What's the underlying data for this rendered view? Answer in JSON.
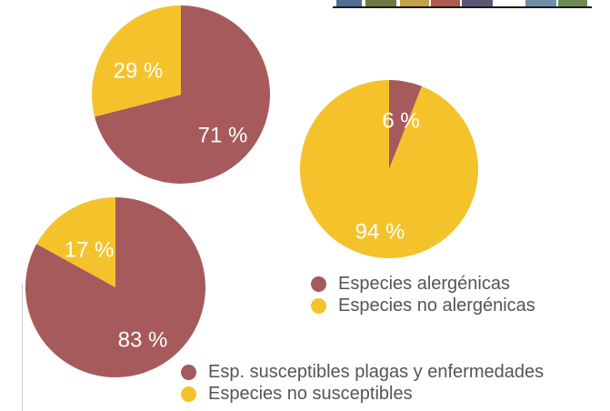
{
  "colors": {
    "red": "#a65a5c",
    "yellow": "#f4c32c",
    "text": "#555555"
  },
  "top_strip_colors": [
    "#4f6d94",
    "#6b7a3e",
    "#c6a046",
    "#b05a4c",
    "#5e5478",
    "#6f8eab",
    "#6d8a52"
  ],
  "chart_data": [
    {
      "type": "pie",
      "slices": [
        {
          "label": "71 %",
          "value": 71,
          "color": "#a65a5c"
        },
        {
          "label": "29 %",
          "value": 29,
          "color": "#f4c32c"
        }
      ]
    },
    {
      "type": "pie",
      "slices": [
        {
          "label": "6 %",
          "value": 6,
          "color": "#a65a5c"
        },
        {
          "label": "94 %",
          "value": 94,
          "color": "#f4c32c"
        }
      ]
    },
    {
      "type": "pie",
      "slices": [
        {
          "label": "83 %",
          "value": 83,
          "color": "#a65a5c"
        },
        {
          "label": "17 %",
          "value": 17,
          "color": "#f4c32c"
        }
      ]
    }
  ],
  "legend_allergenic": {
    "items": [
      {
        "label": "Especies alergénicas",
        "color": "#a65a5c"
      },
      {
        "label": "Especies no alergénicas",
        "color": "#f4c32c"
      }
    ]
  },
  "legend_susceptible": {
    "items": [
      {
        "label": "Esp. susceptibles plagas y enfermedades",
        "color": "#a65a5c"
      },
      {
        "label": "Especies no susceptibles",
        "color": "#f4c32c"
      }
    ]
  }
}
